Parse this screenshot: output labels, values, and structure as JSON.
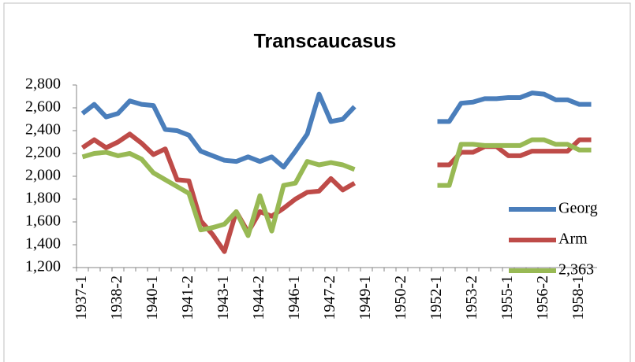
{
  "chart_data": {
    "type": "line",
    "title": "Transcaucasus",
    "categories": [
      "1937-1",
      null,
      null,
      "1938-2",
      null,
      null,
      "1940-1",
      null,
      null,
      "1941-2",
      null,
      null,
      "1943-1",
      null,
      null,
      "1944-2",
      null,
      null,
      "1946-1",
      null,
      null,
      "1947-2",
      null,
      null,
      "1949-1",
      null,
      null,
      "1950-2",
      null,
      null,
      "1952-1",
      null,
      null,
      "1953-2",
      null,
      null,
      "1955-1",
      null,
      null,
      "1956-2",
      null,
      null,
      "1958-1",
      null
    ],
    "series": [
      {
        "name": "Georg",
        "color": "#4a7ebb",
        "values": [
          2550,
          2630,
          2520,
          2550,
          2660,
          2630,
          2620,
          2410,
          2400,
          2360,
          2220,
          2180,
          2140,
          2130,
          2170,
          2130,
          2170,
          2080,
          2220,
          2370,
          2720,
          2480,
          2500,
          2610,
          null,
          null,
          null,
          null,
          null,
          null,
          2480,
          2480,
          2640,
          2650,
          2680,
          2680,
          2690,
          2690,
          2730,
          2720,
          2670,
          2670,
          2630,
          2630
        ]
      },
      {
        "name": "Arm",
        "color": "#be4b48",
        "values": [
          2250,
          2320,
          2250,
          2300,
          2370,
          2290,
          2190,
          2240,
          1970,
          1960,
          1610,
          1490,
          1340,
          1690,
          1510,
          1690,
          1650,
          1720,
          1800,
          1860,
          1870,
          1980,
          1880,
          1940,
          null,
          null,
          null,
          null,
          null,
          null,
          2100,
          2100,
          2210,
          2210,
          2260,
          2260,
          2180,
          2180,
          2220,
          2220,
          2220,
          2220,
          2320,
          2320
        ]
      },
      {
        "name": "2,363",
        "color": "#98b954",
        "values": [
          2170,
          2200,
          2210,
          2180,
          2200,
          2150,
          2030,
          1970,
          1910,
          1850,
          1530,
          1550,
          1580,
          1690,
          1480,
          1830,
          1520,
          1920,
          1940,
          2130,
          2100,
          2120,
          2100,
          2060,
          null,
          null,
          null,
          null,
          null,
          null,
          1920,
          1920,
          2280,
          2280,
          2270,
          2270,
          2270,
          2270,
          2320,
          2320,
          2280,
          2280,
          2230,
          2230
        ]
      }
    ],
    "ylim": [
      1200,
      2800
    ],
    "yticks": [
      {
        "value": 1200,
        "label": "1,200"
      },
      {
        "value": 1400,
        "label": "1,400"
      },
      {
        "value": 1600,
        "label": "1,600"
      },
      {
        "value": 1800,
        "label": "1,800"
      },
      {
        "value": 2000,
        "label": "2,000"
      },
      {
        "value": 2200,
        "label": "2,200"
      },
      {
        "value": 2400,
        "label": "2,400"
      },
      {
        "value": 2600,
        "label": "2,600"
      },
      {
        "value": 2800,
        "label": "2,800"
      }
    ],
    "grid": false,
    "legend": "right"
  }
}
